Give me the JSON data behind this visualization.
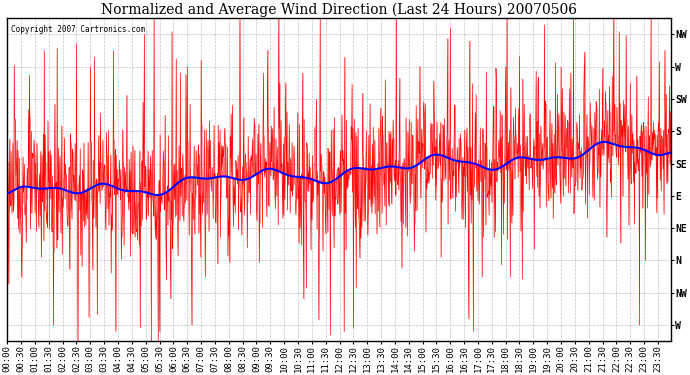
{
  "title": "Normalized and Average Wind Direction (Last 24 Hours) 20070506",
  "copyright_text": "Copyright 2007 Cartronics.com",
  "background_color": "#ffffff",
  "plot_bg_color": "#ffffff",
  "grid_color": "#aaaaaa",
  "ytick_labels": [
    "NW",
    "W",
    "SW",
    "S",
    "SE",
    "E",
    "NE",
    "N",
    "NW",
    "W"
  ],
  "ytick_values": [
    10,
    9,
    8,
    7,
    6,
    5,
    4,
    3,
    2,
    1
  ],
  "ylim": [
    0.5,
    10.5
  ],
  "red_line_color": "#ff0000",
  "blue_line_color": "#0000ff",
  "title_fontsize": 10,
  "tick_fontsize": 7,
  "figsize": [
    6.9,
    3.75
  ],
  "dpi": 100
}
